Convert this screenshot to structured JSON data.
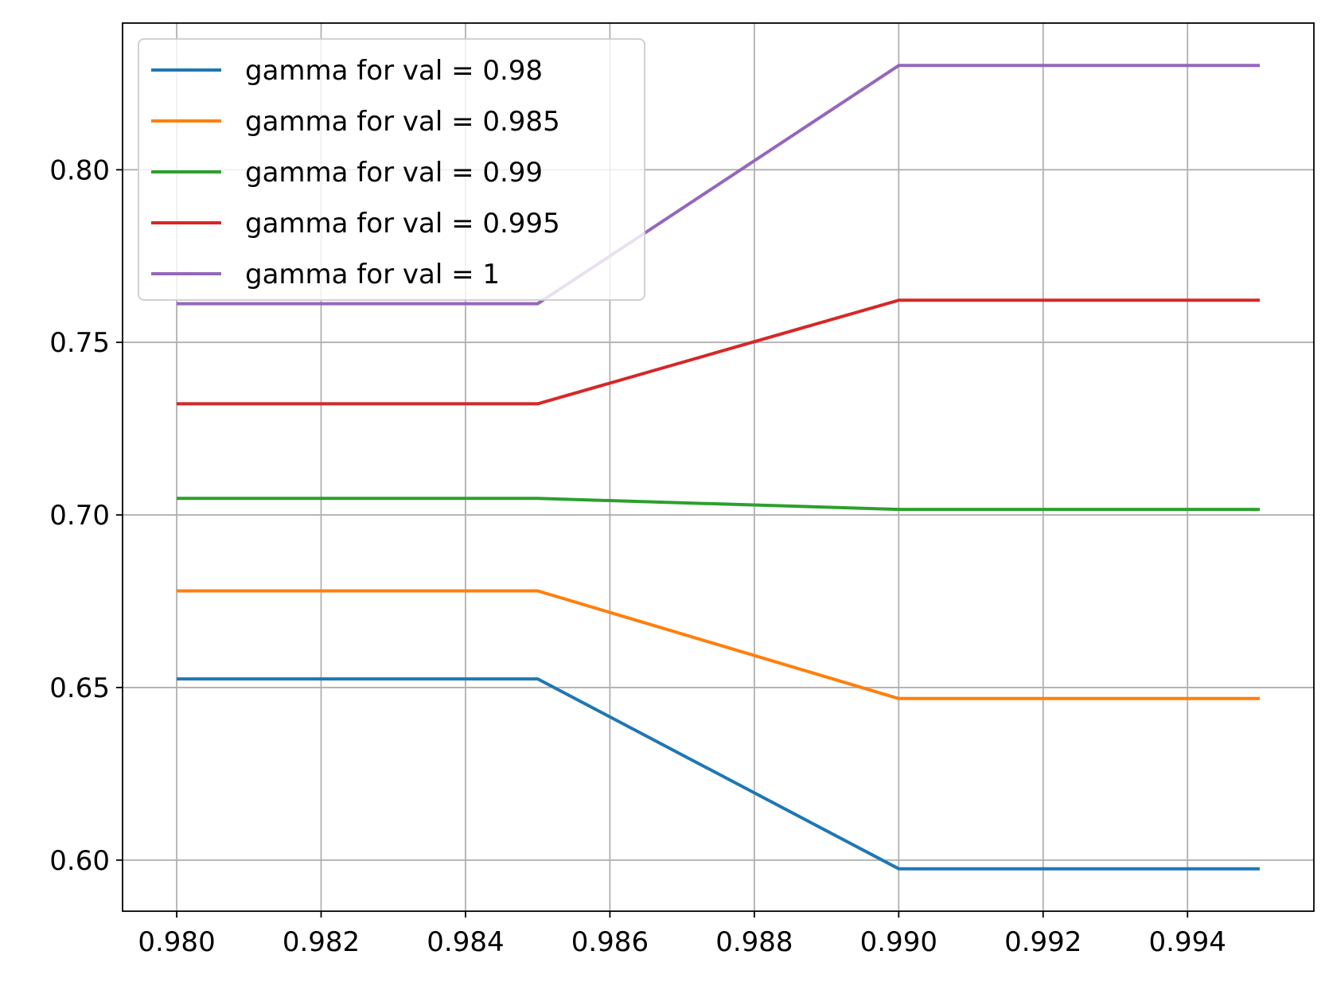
{
  "chart_data": {
    "type": "line",
    "title": "",
    "xlabel": "",
    "ylabel": "",
    "x": [
      0.98,
      0.985,
      0.99,
      0.995
    ],
    "xlim": [
      0.97925,
      0.99575
    ],
    "ylim": [
      0.5852,
      0.8425
    ],
    "xticks": [
      0.98,
      0.982,
      0.984,
      0.986,
      0.988,
      0.99,
      0.992,
      0.994
    ],
    "xtick_labels": [
      "0.980",
      "0.982",
      "0.984",
      "0.986",
      "0.988",
      "0.990",
      "0.992",
      "0.994"
    ],
    "yticks": [
      0.6,
      0.65,
      0.7,
      0.75,
      0.8
    ],
    "ytick_labels": [
      "0.60",
      "0.65",
      "0.70",
      "0.75",
      "0.80"
    ],
    "grid": true,
    "legend_position": "top-left",
    "series": [
      {
        "name": "gamma for val = 0.98",
        "color": "#1f77b4",
        "values": [
          0.6525,
          0.6525,
          0.5975,
          0.5975
        ]
      },
      {
        "name": "gamma for val = 0.985",
        "color": "#ff7f0e",
        "values": [
          0.678,
          0.678,
          0.6468,
          0.6468
        ]
      },
      {
        "name": "gamma for val = 0.99",
        "color": "#2ca02c",
        "values": [
          0.7048,
          0.7048,
          0.7016,
          0.7016
        ]
      },
      {
        "name": "gamma for val = 0.995",
        "color": "#d62728",
        "values": [
          0.7322,
          0.7322,
          0.7622,
          0.7622
        ]
      },
      {
        "name": "gamma for val = 1",
        "color": "#9467bd",
        "values": [
          0.7612,
          0.7612,
          0.8302,
          0.8302
        ]
      }
    ]
  }
}
